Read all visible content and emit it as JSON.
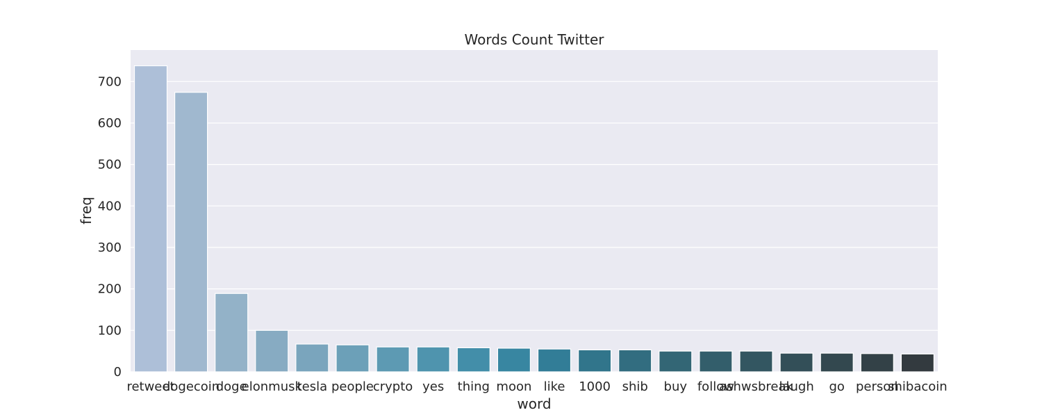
{
  "chart_data": {
    "type": "bar",
    "title": "Words Count Twitter",
    "xlabel": "word",
    "ylabel": "freq",
    "ylim": [
      0,
      770
    ],
    "yticks": [
      0,
      100,
      200,
      300,
      400,
      500,
      600,
      700
    ],
    "grid": true,
    "categories": [
      "retweet",
      "dogecoin",
      "doge",
      "elonmusk",
      "tesla",
      "people",
      "crypto",
      "yes",
      "thing",
      "moon",
      "like",
      "1000",
      "shib",
      "buy",
      "follow",
      "ashwsbreak",
      "laugh",
      "go",
      "person",
      "shibacoin"
    ],
    "values": [
      738,
      674,
      189,
      100,
      67,
      65,
      60,
      60,
      58,
      57,
      55,
      53,
      53,
      50,
      50,
      50,
      45,
      45,
      44,
      43
    ],
    "colors": [
      "#adbfd8",
      "#a0b8cf",
      "#93b2c8",
      "#87abc2",
      "#7aa5bd",
      "#6ca0b8",
      "#5d9ab3",
      "#4f94ae",
      "#438ea9",
      "#3886a1",
      "#327d97",
      "#31758b",
      "#326d80",
      "#336675",
      "#335e6b",
      "#335661",
      "#334f58",
      "#33484f",
      "#334147",
      "#333a3f"
    ]
  }
}
